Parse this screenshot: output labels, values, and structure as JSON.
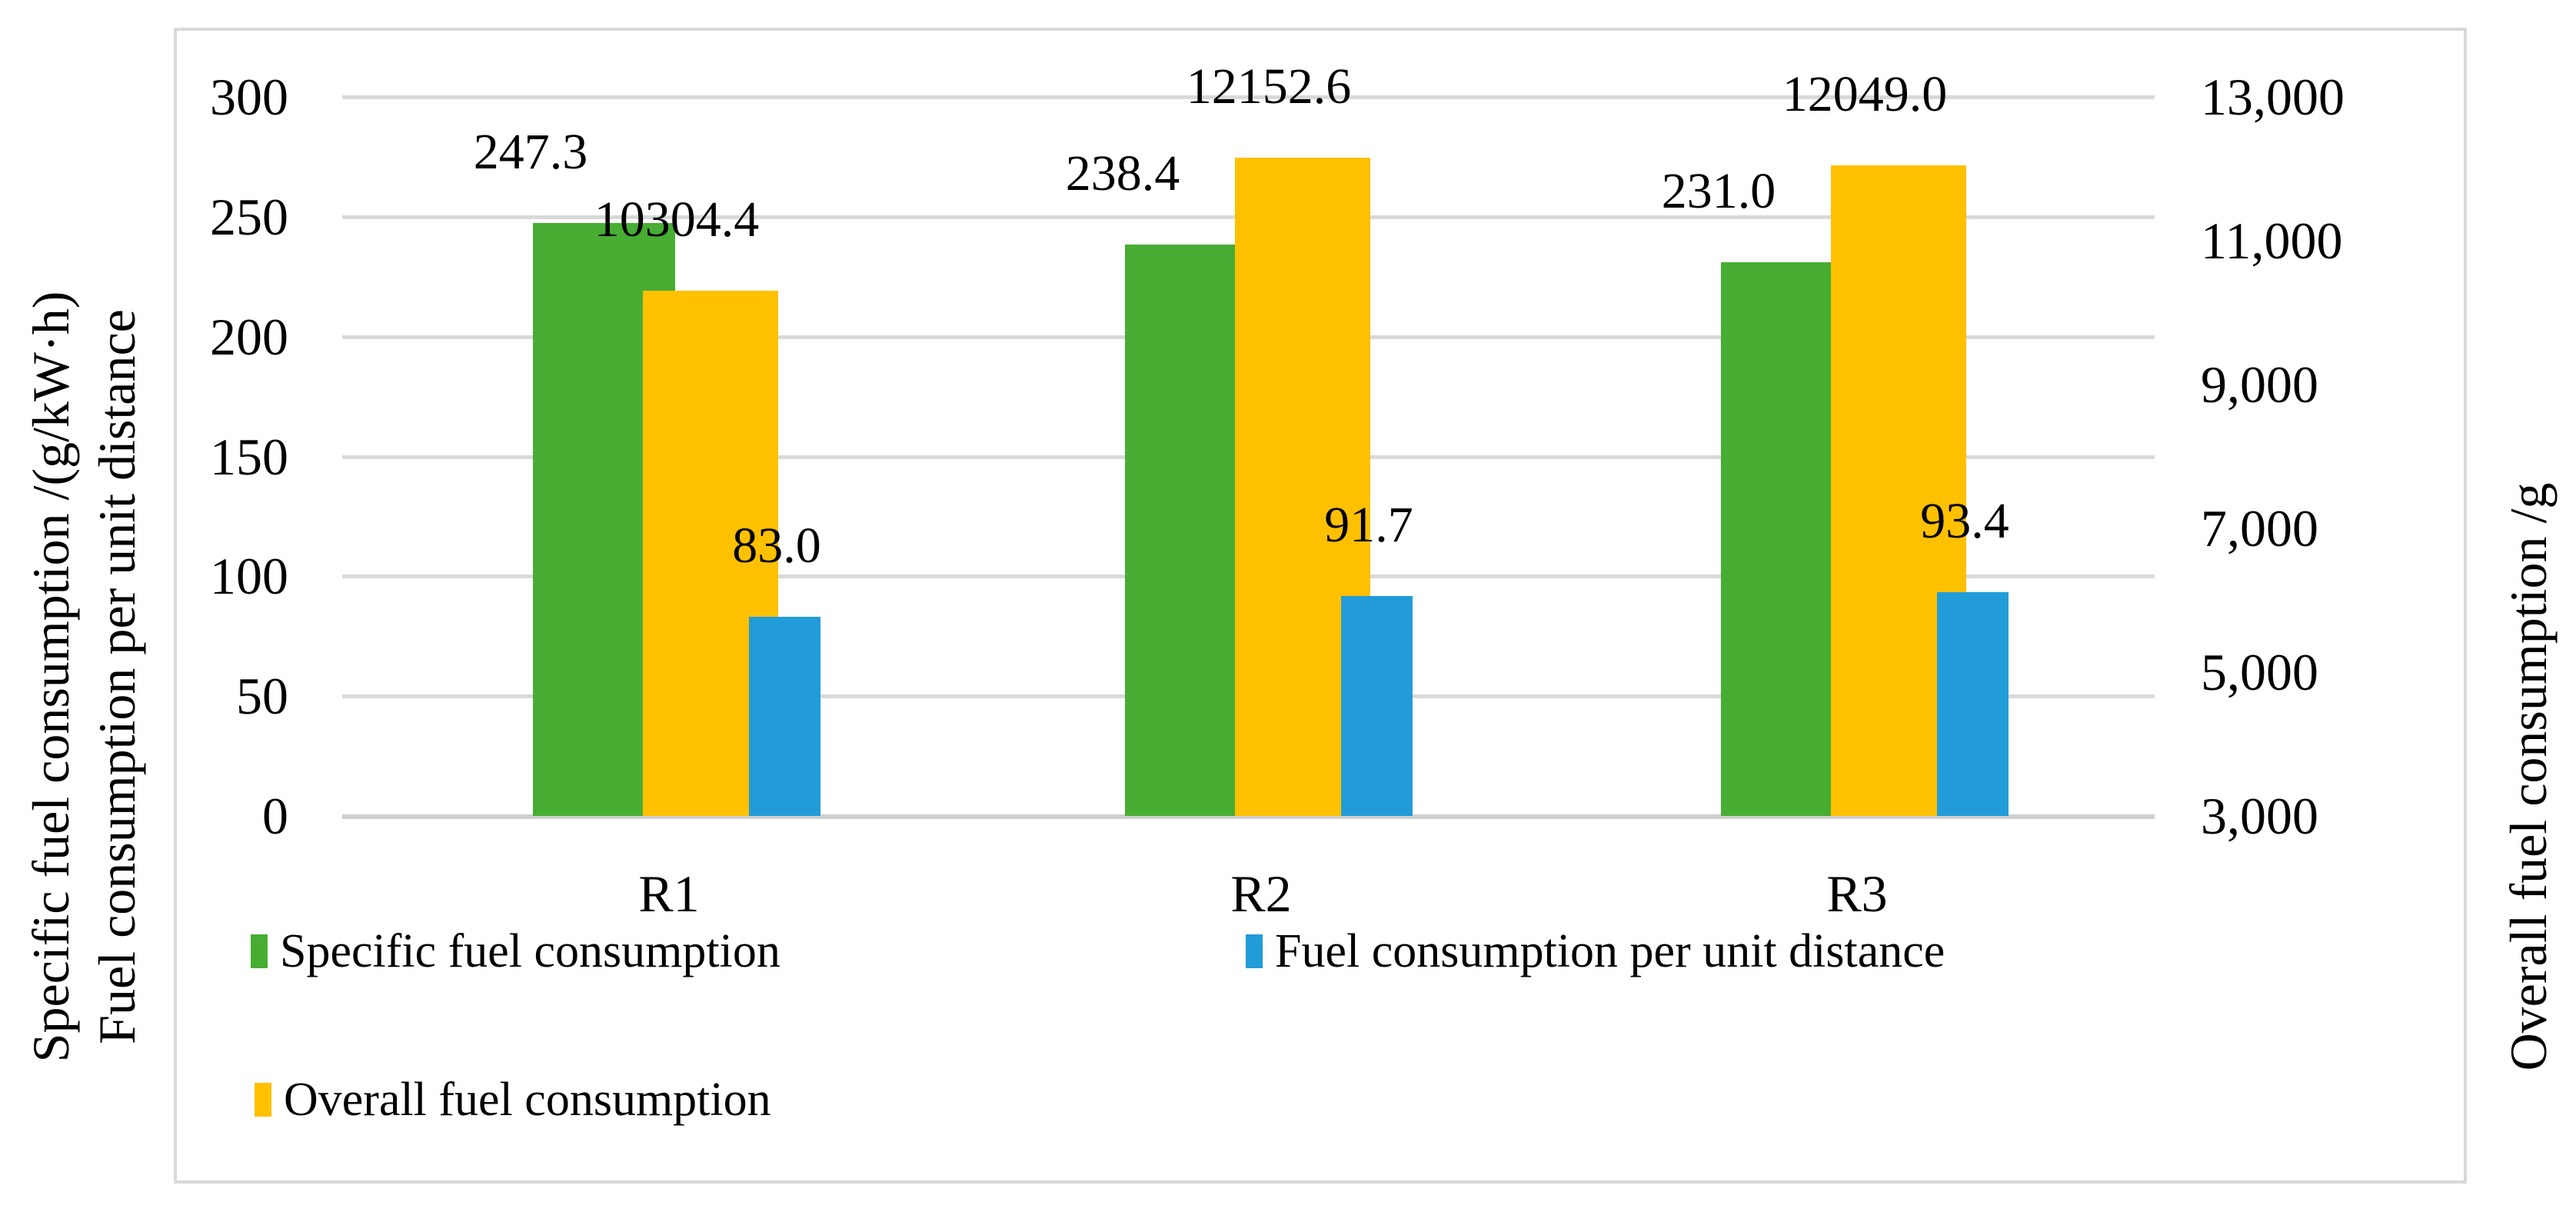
{
  "chart_data": {
    "type": "bar",
    "categories": [
      "R1",
      "R2",
      "R3"
    ],
    "series": [
      {
        "name": "Specific fuel consumption",
        "axis": "left",
        "color": "#47AD33",
        "values": [
          247.3,
          238.4,
          231.0
        ],
        "labels": [
          "247.3",
          "238.4",
          "231.0"
        ]
      },
      {
        "name": "Overall fuel consumption",
        "axis": "right",
        "color": "#FFC000",
        "values": [
          10304.4,
          12152.6,
          12049.0
        ],
        "labels": [
          "10304.4",
          "12152.6",
          "12049.0"
        ]
      },
      {
        "name": "Fuel consumption per unit distance",
        "axis": "left",
        "color": "#219CD8",
        "values": [
          83.0,
          91.7,
          93.4
        ],
        "labels": [
          "83.0",
          "91.7",
          "93.4"
        ]
      }
    ],
    "left_axis": {
      "title_line1": "Specific fuel consumption /(g/kW·h)",
      "title_line2": "Fuel consumption per unit distance",
      "min": 0,
      "max": 300,
      "step": 50,
      "ticks": [
        "300",
        "250",
        "200",
        "150",
        "100",
        "50",
        "0"
      ]
    },
    "right_axis": {
      "title": "Overall fuel consumption /g",
      "min": 3000,
      "max": 13000,
      "step": 2000,
      "ticks": [
        "13,000",
        "11,000",
        "9,000",
        "7,000",
        "5,000",
        "3,000"
      ]
    },
    "legend": [
      {
        "label": "Specific fuel consumption",
        "color": "#47AD33"
      },
      {
        "label": "Fuel consumption per unit distance",
        "color": "#219CD8"
      },
      {
        "label": "Overall fuel consumption",
        "color": "#FFC000"
      }
    ],
    "grid_color": "#d9d9d9",
    "frame_color": "#d9d9d9",
    "legend_position": "bottom-left, two rows"
  }
}
